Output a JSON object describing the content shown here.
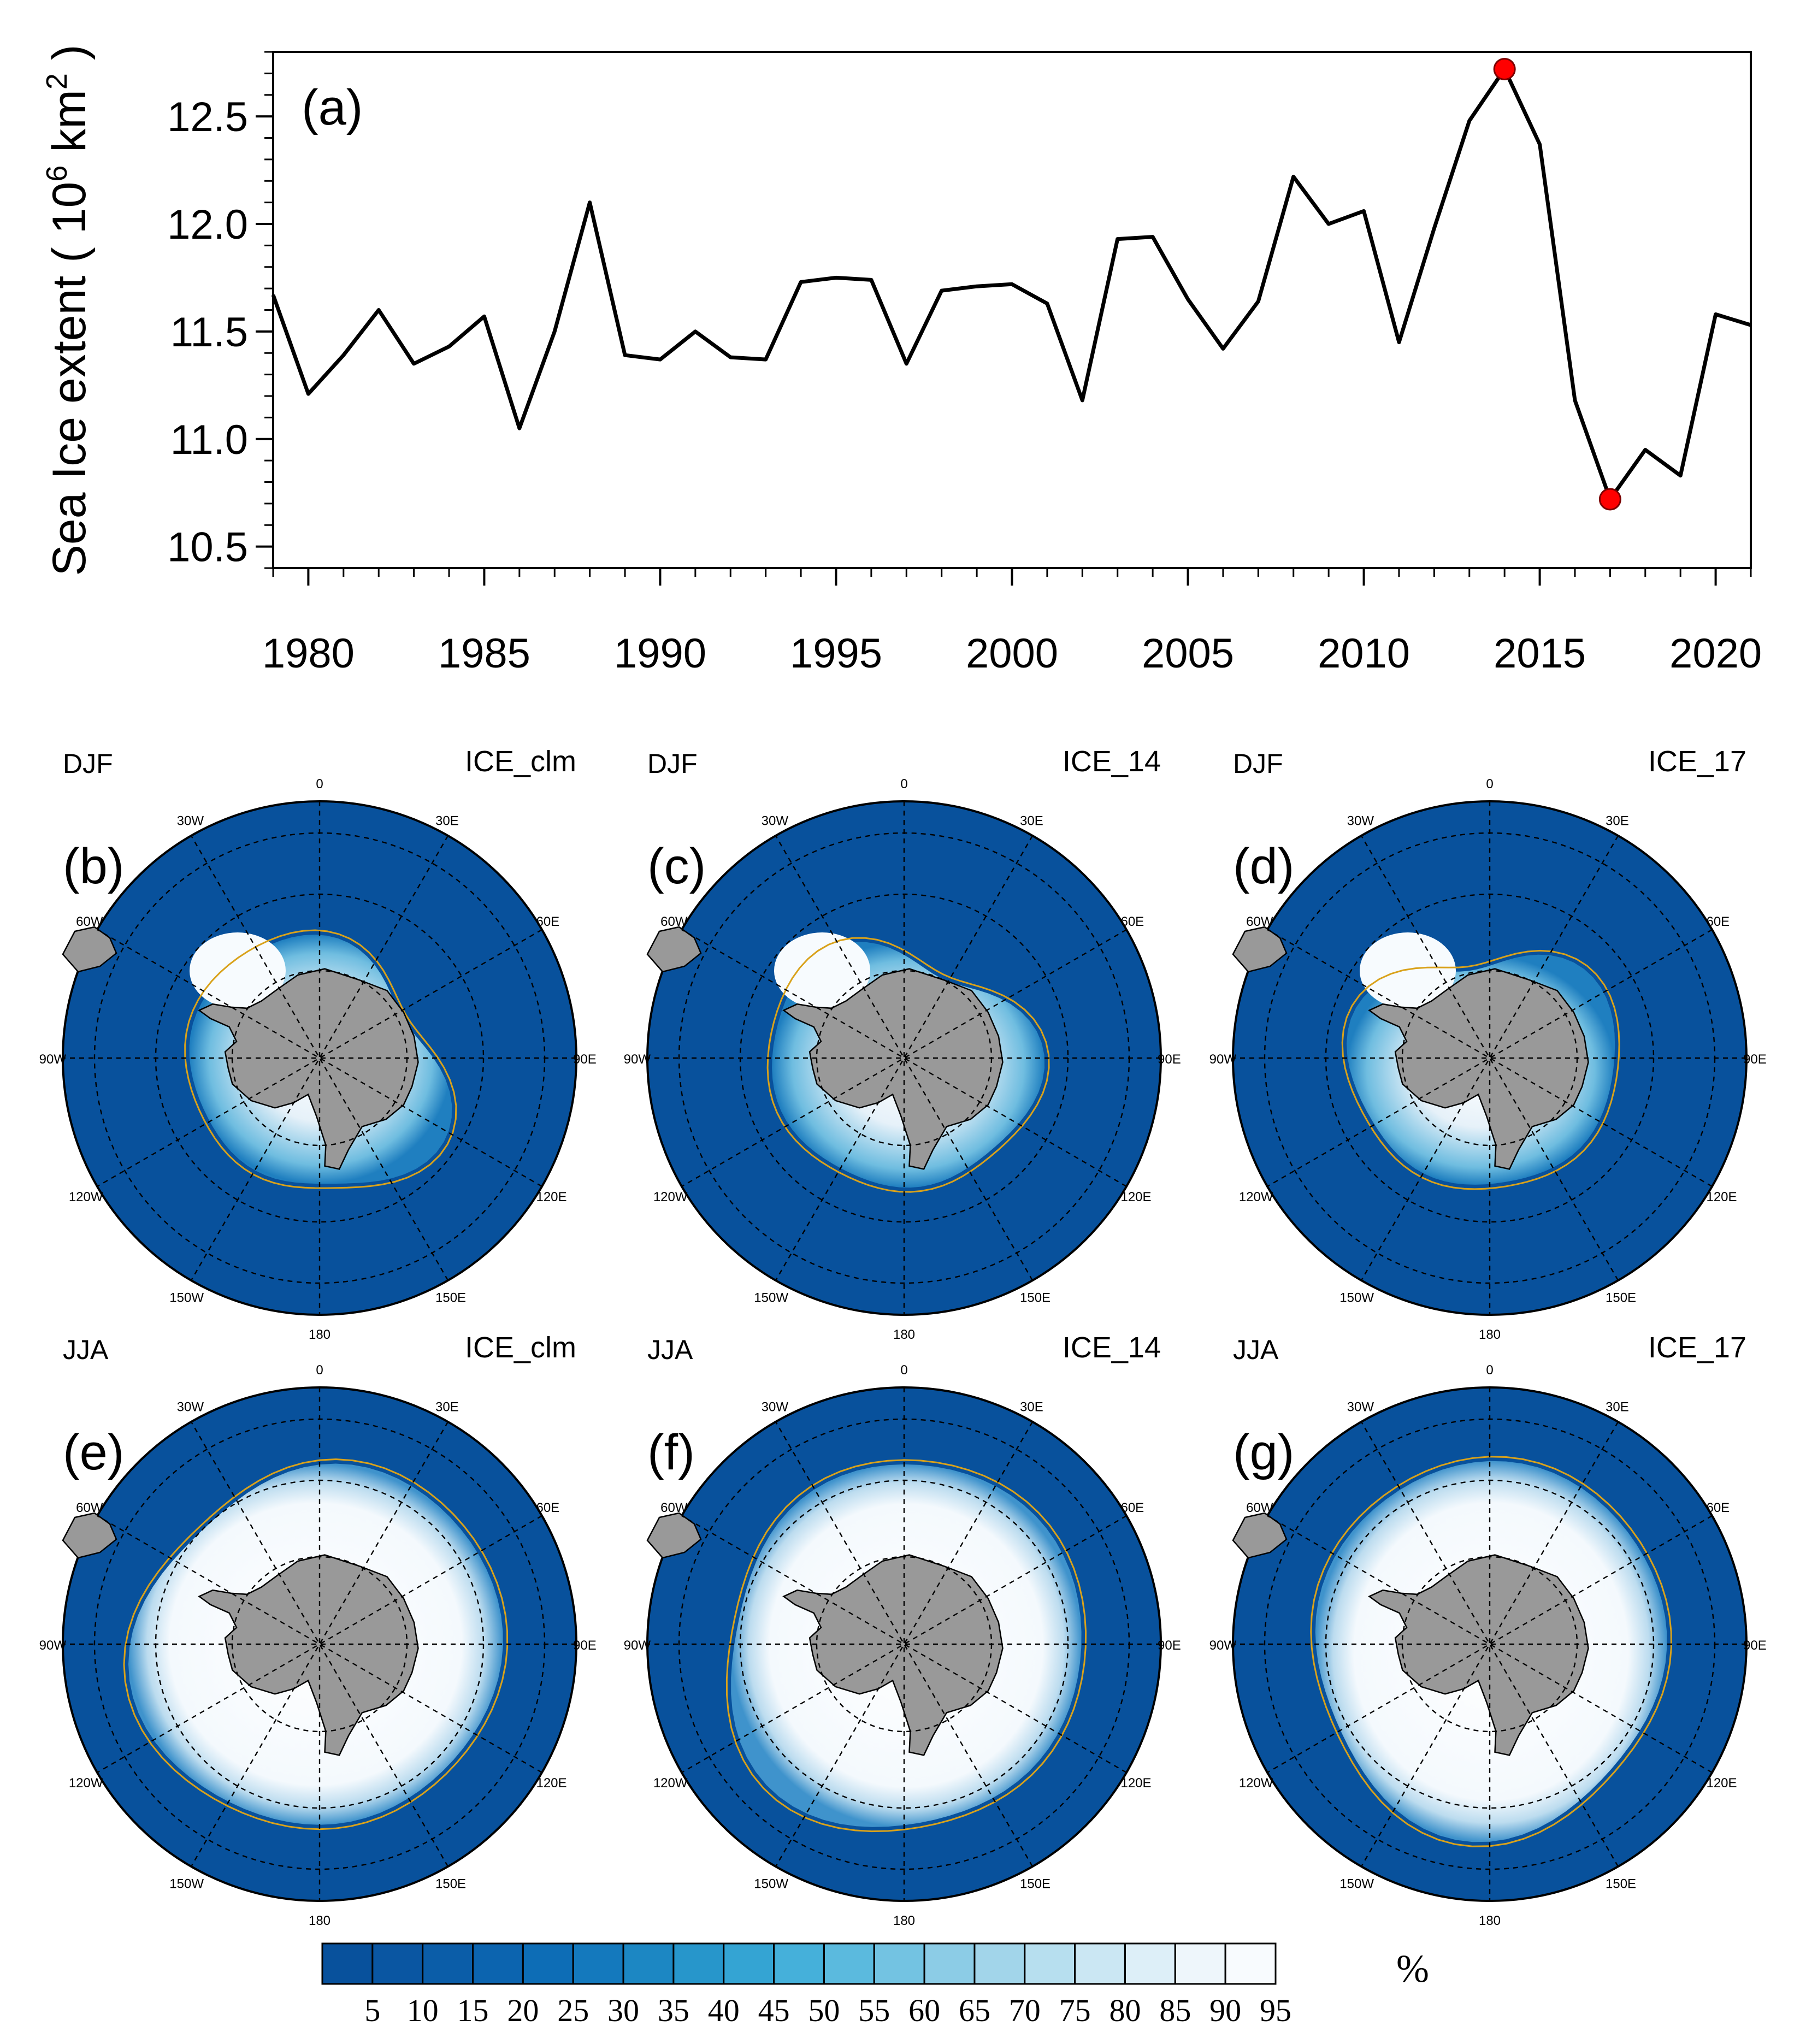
{
  "colors": {
    "line": "#000000",
    "highlight": "#ff0000",
    "land": "#999999",
    "iceEdge": "#d9a21b",
    "palette": [
      "#08519c",
      "#0a56a2",
      "#0b5da8",
      "#0c64af",
      "#0d6db6",
      "#1479bd",
      "#1c87c3",
      "#2796cb",
      "#34a4d3",
      "#45b0da",
      "#5bbade",
      "#73c3e2",
      "#8ccce6",
      "#a2d5ea",
      "#b7dfef",
      "#cbe7f3",
      "#ddeff8",
      "#eef6fb",
      "#f8fbfe"
    ]
  },
  "chart_data": [
    {
      "type": "line",
      "panel_label": "(a)",
      "title": "",
      "xlabel": "",
      "ylabel": "Sea Ice extent ( 10",
      "ylabel_exp": "6",
      "ylabel_unit": " km",
      "ylabel_unit_exp": "2",
      "ylabel_close": " )",
      "xlim": [
        1979,
        2021
      ],
      "ylim": [
        10.4,
        12.8
      ],
      "xticks": [
        "1980",
        "1985",
        "1990",
        "1995",
        "2000",
        "2005",
        "2010",
        "2015",
        "2020"
      ],
      "yticks": [
        "10.5",
        "11.0",
        "11.5",
        "12.0",
        "12.5"
      ],
      "x": [
        1979,
        1980,
        1981,
        1982,
        1983,
        1984,
        1985,
        1986,
        1987,
        1988,
        1989,
        1990,
        1991,
        1992,
        1993,
        1994,
        1995,
        1996,
        1997,
        1998,
        1999,
        2000,
        2001,
        2002,
        2003,
        2004,
        2005,
        2006,
        2007,
        2008,
        2009,
        2010,
        2011,
        2012,
        2013,
        2014,
        2015,
        2016,
        2017,
        2018,
        2019,
        2020,
        2021
      ],
      "values": [
        11.67,
        11.21,
        11.39,
        11.6,
        11.35,
        11.43,
        11.57,
        11.05,
        11.5,
        12.1,
        11.39,
        11.37,
        11.5,
        11.38,
        11.37,
        11.73,
        11.75,
        11.74,
        11.35,
        11.69,
        11.71,
        11.72,
        11.63,
        11.18,
        11.93,
        11.94,
        11.65,
        11.42,
        11.64,
        12.22,
        12.0,
        12.06,
        11.45,
        11.98,
        12.48,
        12.72,
        12.37,
        11.18,
        10.72,
        10.95,
        10.83,
        11.58,
        11.53
      ],
      "highlights": [
        {
          "x": 2014,
          "y": 12.72
        },
        {
          "x": 2017,
          "y": 10.72
        }
      ]
    },
    {
      "type": "heatmap",
      "projection": "south polar stereographic",
      "lon_labels": [
        "0",
        "30E",
        "60E",
        "90E",
        "120E",
        "150E",
        "180",
        "150W",
        "120W",
        "90W",
        "60W",
        "30W"
      ],
      "colorbar": {
        "levels": [
          "5",
          "10",
          "15",
          "20",
          "25",
          "30",
          "35",
          "40",
          "45",
          "50",
          "55",
          "60",
          "65",
          "70",
          "75",
          "80",
          "85",
          "90",
          "95"
        ],
        "unit": "%"
      },
      "panels": [
        {
          "label": "(b)",
          "season": "DJF",
          "case": "ICE_clm"
        },
        {
          "label": "(c)",
          "season": "DJF",
          "case": "ICE_14"
        },
        {
          "label": "(d)",
          "season": "DJF",
          "case": "ICE_17"
        },
        {
          "label": "(e)",
          "season": "JJA",
          "case": "ICE_clm"
        },
        {
          "label": "(f)",
          "season": "JJA",
          "case": "ICE_14"
        },
        {
          "label": "(g)",
          "season": "JJA",
          "case": "ICE_17"
        }
      ]
    }
  ]
}
